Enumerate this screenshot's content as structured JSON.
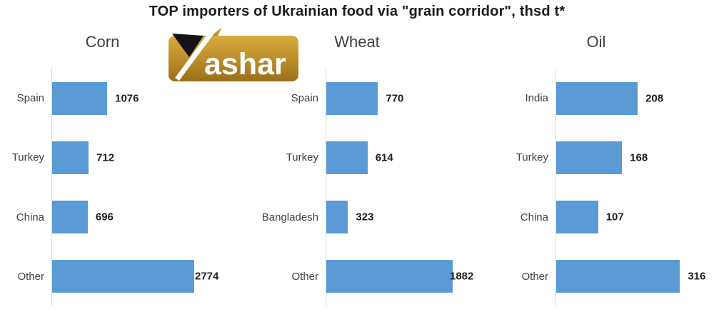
{
  "title": "TOP importers of Ukrainian food via \"grain corridor\", thsd t*",
  "logo": {
    "text": "ashar"
  },
  "colors": {
    "bar": "#5b9bd5",
    "axis": "#d9d9d9",
    "text": "#1a1a1a",
    "muted_text": "#404040",
    "logo_gold_light": "#d8aa3e",
    "logo_gold": "#c0912c",
    "logo_gold_dark": "#9a6f1a",
    "logo_triangle": "#141414"
  },
  "chart_data": [
    {
      "type": "bar",
      "orientation": "horizontal",
      "title": "Corn",
      "categories": [
        "Spain",
        "Turkey",
        "China",
        "Other"
      ],
      "values": [
        1076,
        712,
        696,
        2774
      ],
      "xlim": [
        0,
        3000
      ],
      "grid": false,
      "legend": false,
      "data_labels": true
    },
    {
      "type": "bar",
      "orientation": "horizontal",
      "title": "Wheat",
      "categories": [
        "Spain",
        "Turkey",
        "Bangladesh",
        "Other"
      ],
      "values": [
        770,
        614,
        323,
        1882
      ],
      "xlim": [
        0,
        2000
      ],
      "grid": false,
      "legend": false,
      "data_labels": true
    },
    {
      "type": "bar",
      "orientation": "horizontal",
      "title": "Oil",
      "categories": [
        "India",
        "Turkey",
        "China",
        "Other"
      ],
      "values": [
        208,
        168,
        107,
        316
      ],
      "xlim": [
        0,
        350
      ],
      "grid": false,
      "legend": false,
      "data_labels": true
    }
  ]
}
